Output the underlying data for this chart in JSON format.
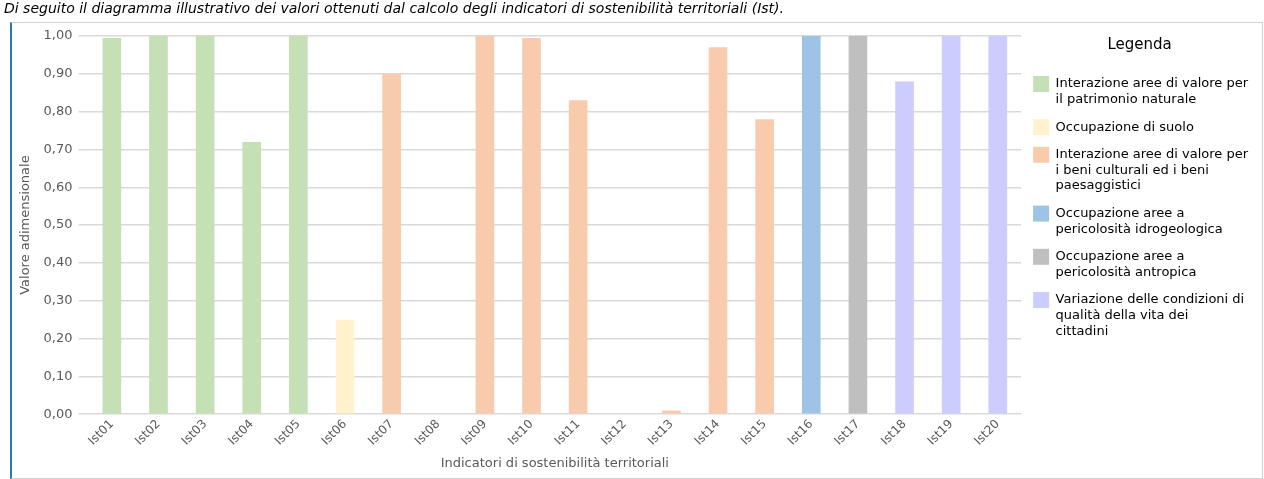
{
  "chart_data": {
    "type": "bar",
    "title": "Di seguito il diagramma illustrativo dei valori ottenuti dal calcolo degli indicatori di sostenibilità territoriali (Ist).",
    "xlabel": "Indicatori di sostenibilità territoriali",
    "ylabel": "Valore adimensionale",
    "legend_title": "Legenda",
    "categories": [
      "Ist01",
      "Ist02",
      "Ist03",
      "Ist04",
      "Ist05",
      "Ist06",
      "Ist07",
      "Ist08",
      "Ist09",
      "Ist10",
      "Ist11",
      "Ist12",
      "Ist13",
      "Ist14",
      "Ist15",
      "Ist16",
      "Ist17",
      "Ist18",
      "Ist19",
      "Ist20"
    ],
    "stacked": true,
    "series": [
      {
        "name": "Interazione aree di valore per il patrimonio naturale",
        "color": "#c5e0b4",
        "values": [
          0.995,
          1.0,
          1.0,
          0.72,
          1.0,
          null,
          null,
          null,
          null,
          null,
          null,
          null,
          null,
          null,
          null,
          null,
          null,
          null,
          null,
          null
        ]
      },
      {
        "name": "Occupazione di suolo",
        "color": "#fff2cc",
        "values": [
          null,
          null,
          null,
          null,
          null,
          0.25,
          null,
          null,
          null,
          null,
          null,
          null,
          null,
          null,
          null,
          null,
          null,
          null,
          null,
          null
        ]
      },
      {
        "name": "Interazione aree di valore per i beni culturali ed i beni paesaggistici",
        "color": "#f8cbad",
        "values": [
          null,
          null,
          null,
          null,
          null,
          null,
          0.9,
          null,
          1.0,
          0.995,
          0.83,
          0.0,
          0.01,
          0.97,
          0.78,
          null,
          null,
          null,
          null,
          null
        ]
      },
      {
        "name": "Occupazione aree a pericolosità idrogeologica",
        "color": "#9dc3e6",
        "values": [
          null,
          null,
          null,
          null,
          null,
          null,
          null,
          null,
          null,
          null,
          null,
          null,
          null,
          null,
          null,
          1.0,
          null,
          null,
          null,
          null
        ]
      },
      {
        "name": "Occupazione aree a pericolosità antropica",
        "color": "#bfbfbf",
        "values": [
          null,
          null,
          null,
          null,
          null,
          null,
          null,
          null,
          null,
          null,
          null,
          null,
          null,
          null,
          null,
          null,
          1.0,
          null,
          null,
          null
        ]
      },
      {
        "name": "Variazione delle condizioni di qualità della vita dei cittadini",
        "color": "#ccccff",
        "values": [
          null,
          null,
          null,
          null,
          null,
          null,
          null,
          null,
          null,
          null,
          null,
          null,
          null,
          null,
          null,
          null,
          null,
          0.88,
          1.0,
          1.0
        ]
      }
    ],
    "ylim": [
      0,
      1
    ],
    "yticks": [
      {
        "value": 0,
        "label": "0,00"
      },
      {
        "value": 0.1,
        "label": "0,10"
      },
      {
        "value": 0.2,
        "label": "0,20"
      },
      {
        "value": 0.3,
        "label": "0,30"
      },
      {
        "value": 0.4,
        "label": "0,40"
      },
      {
        "value": 0.5,
        "label": "0,50"
      },
      {
        "value": 0.6,
        "label": "0,60"
      },
      {
        "value": 0.7,
        "label": "0,70"
      },
      {
        "value": 0.8,
        "label": "0,80"
      },
      {
        "value": 0.9,
        "label": "0,90"
      },
      {
        "value": 1,
        "label": "1,00"
      }
    ],
    "grid": "y",
    "legend": "right"
  }
}
